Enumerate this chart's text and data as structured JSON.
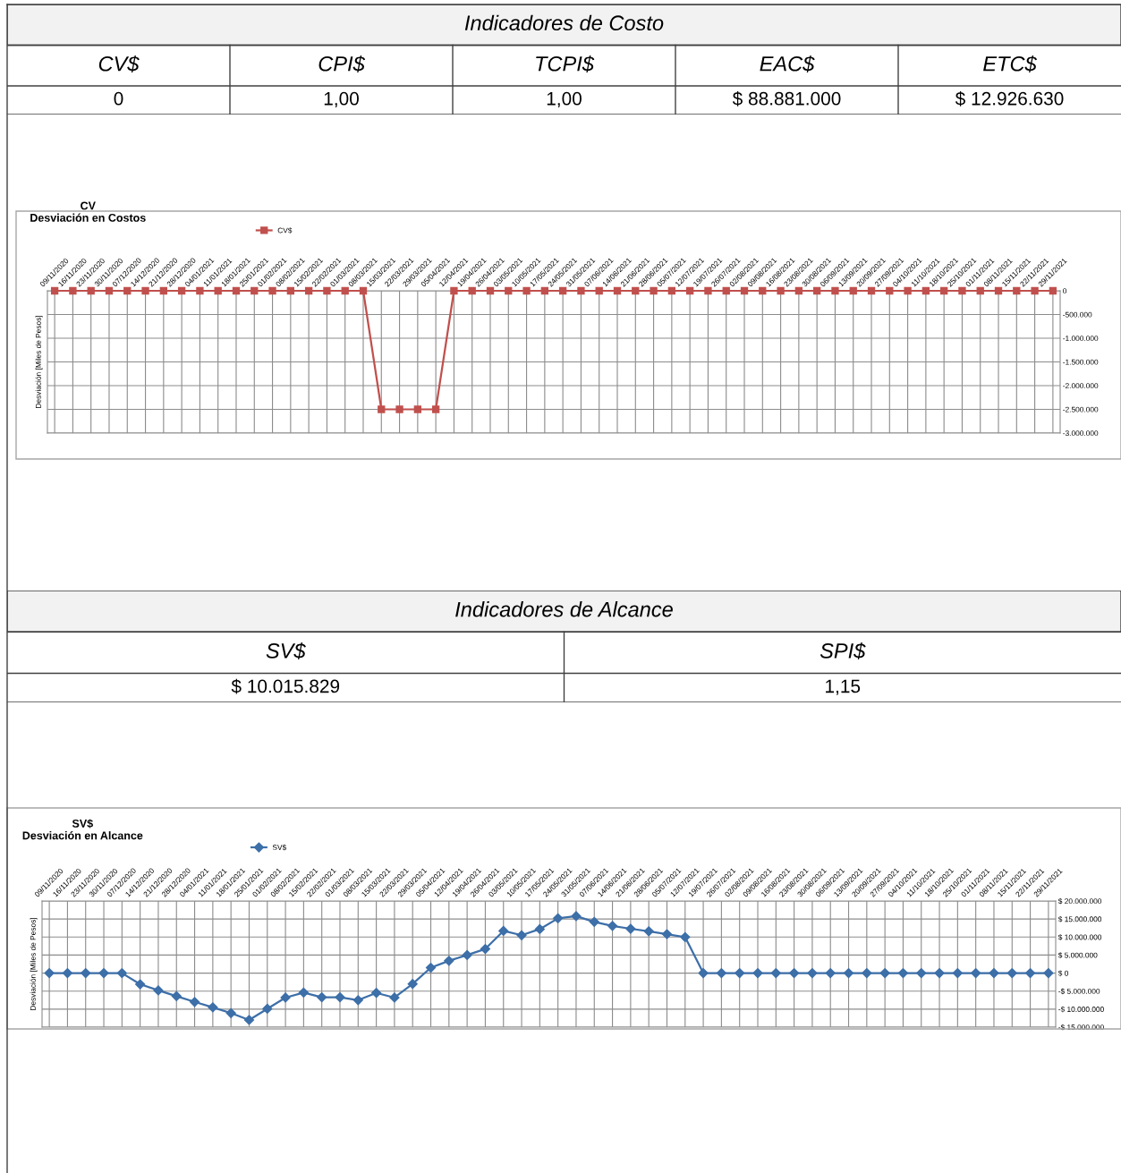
{
  "chart_data": [
    {
      "type": "other",
      "title": "Indicadores de Costo",
      "categories": [
        "CV$",
        "CPI$",
        "TCPI$",
        "EAC$",
        "ETC$"
      ],
      "value_labels": [
        "0",
        "1,00",
        "1,00",
        "$ 88.881.000",
        "$ 12.926.630"
      ]
    },
    {
      "type": "line",
      "title": "CV",
      "subtitle": "Desviación en Costos",
      "ylabel": "Desviación [Miles de Pesos]",
      "categories": [
        "09/11/2020",
        "16/11/2020",
        "23/11/2020",
        "30/11/2020",
        "07/12/2020",
        "14/12/2020",
        "21/12/2020",
        "28/12/2020",
        "04/01/2021",
        "11/01/2021",
        "18/01/2021",
        "25/01/2021",
        "01/02/2021",
        "08/02/2021",
        "15/02/2021",
        "22/02/2021",
        "01/03/2021",
        "08/03/2021",
        "15/03/2021",
        "22/03/2021",
        "29/03/2021",
        "05/04/2021",
        "12/04/2021",
        "19/04/2021",
        "26/04/2021",
        "03/05/2021",
        "10/05/2021",
        "17/05/2021",
        "24/05/2021",
        "31/05/2021",
        "07/06/2021",
        "14/06/2021",
        "21/06/2021",
        "28/06/2021",
        "05/07/2021",
        "12/07/2021",
        "19/07/2021",
        "26/07/2021",
        "02/08/2021",
        "09/08/2021",
        "16/08/2021",
        "23/08/2021",
        "30/08/2021",
        "06/09/2021",
        "13/09/2021",
        "20/09/2021",
        "27/09/2021",
        "04/10/2021",
        "11/10/2021",
        "18/10/2021",
        "25/10/2021",
        "01/11/2021",
        "08/11/2021",
        "15/11/2021",
        "22/11/2021",
        "29/11/2021"
      ],
      "series": [
        {
          "name": "CV$",
          "color": "#c0504d",
          "values": [
            0,
            0,
            0,
            0,
            0,
            0,
            0,
            0,
            0,
            0,
            0,
            0,
            0,
            0,
            0,
            0,
            0,
            0,
            -2500000,
            -2500000,
            -2500000,
            -2500000,
            0,
            0,
            0,
            0,
            0,
            0,
            0,
            0,
            0,
            0,
            0,
            0,
            0,
            0,
            0,
            0,
            0,
            0,
            0,
            0,
            0,
            0,
            0,
            0,
            0,
            0,
            0,
            0,
            0,
            0,
            0,
            0,
            0,
            0
          ]
        }
      ],
      "ylim": [
        -3000000,
        0
      ],
      "yticks": [
        {
          "value": -3000000,
          "label": "-3.000.000"
        },
        {
          "value": -2500000,
          "label": "-2.500.000"
        },
        {
          "value": -2000000,
          "label": "-2.000.000"
        },
        {
          "value": -1500000,
          "label": "-1.500.000"
        },
        {
          "value": -1000000,
          "label": "-1.000.000"
        },
        {
          "value": -500000,
          "label": "-500.000"
        },
        0
      ],
      "grid": true,
      "legend": "top",
      "marker": "square",
      "line_style": "solid"
    },
    {
      "type": "other",
      "title": "Indicadores de Alcance",
      "categories": [
        "SV$",
        "SPI$"
      ],
      "value_labels": [
        "$ 10.015.829",
        "1,15"
      ]
    },
    {
      "type": "line",
      "title": "SV$",
      "subtitle": "Desviación en Alcance",
      "ylabel": "Desviación [Miles de Pesos]",
      "categories": [
        "09/11/2020",
        "16/11/2020",
        "23/11/2020",
        "30/11/2020",
        "07/12/2020",
        "14/12/2020",
        "21/12/2020",
        "28/12/2020",
        "04/01/2021",
        "11/01/2021",
        "18/01/2021",
        "25/01/2021",
        "01/02/2021",
        "08/02/2021",
        "15/02/2021",
        "22/02/2021",
        "01/03/2021",
        "08/03/2021",
        "15/03/2021",
        "22/03/2021",
        "29/03/2021",
        "05/04/2021",
        "12/04/2021",
        "19/04/2021",
        "26/04/2021",
        "03/05/2021",
        "10/05/2021",
        "17/05/2021",
        "24/05/2021",
        "31/05/2021",
        "07/06/2021",
        "14/06/2021",
        "21/06/2021",
        "28/06/2021",
        "05/07/2021",
        "12/07/2021",
        "19/07/2021",
        "26/07/2021",
        "02/08/2021",
        "09/08/2021",
        "16/08/2021",
        "23/08/2021",
        "30/08/2021",
        "06/09/2021",
        "13/09/2021",
        "20/09/2021",
        "27/09/2021",
        "04/10/2021",
        "11/10/2021",
        "18/10/2021",
        "25/10/2021",
        "01/11/2021",
        "08/11/2021",
        "15/11/2021",
        "22/11/2021",
        "29/11/2021"
      ],
      "series": [
        {
          "name": "SV$",
          "color": "#3d6fa8",
          "values": [
            0,
            0,
            0,
            0,
            0,
            -3100000,
            -4800000,
            -6400000,
            -8000000,
            -9500000,
            -11100000,
            -13000000,
            -9900000,
            -6800000,
            -5400000,
            -6700000,
            -6700000,
            -7500000,
            -5500000,
            -6800000,
            -3000000,
            1500000,
            3400000,
            5000000,
            6700000,
            11700000,
            10500000,
            12200000,
            15200000,
            15800000,
            14200000,
            13100000,
            12300000,
            11600000,
            10800000,
            10000000,
            0,
            0,
            0,
            0,
            0,
            0,
            0,
            0,
            0,
            0,
            0,
            0,
            0,
            0,
            0,
            0,
            0,
            0,
            0,
            0
          ]
        }
      ],
      "ylim": [
        -15000000,
        20000000
      ],
      "yticks": [
        {
          "value": -15000000,
          "label": "-$ 15.000.000"
        },
        {
          "value": -10000000,
          "label": "-$ 10.000.000"
        },
        {
          "value": -5000000,
          "label": "-$ 5.000.000"
        },
        {
          "value": 0,
          "label": "$ 0"
        },
        {
          "value": 5000000,
          "label": "$ 5.000.000"
        },
        {
          "value": 10000000,
          "label": "$ 10.000.000"
        },
        {
          "value": 15000000,
          "label": "$ 15.000.000"
        },
        {
          "value": 20000000,
          "label": "$ 20.000.000"
        }
      ],
      "grid": true,
      "legend": "top",
      "marker": "diamond",
      "line_style": "solid"
    }
  ]
}
